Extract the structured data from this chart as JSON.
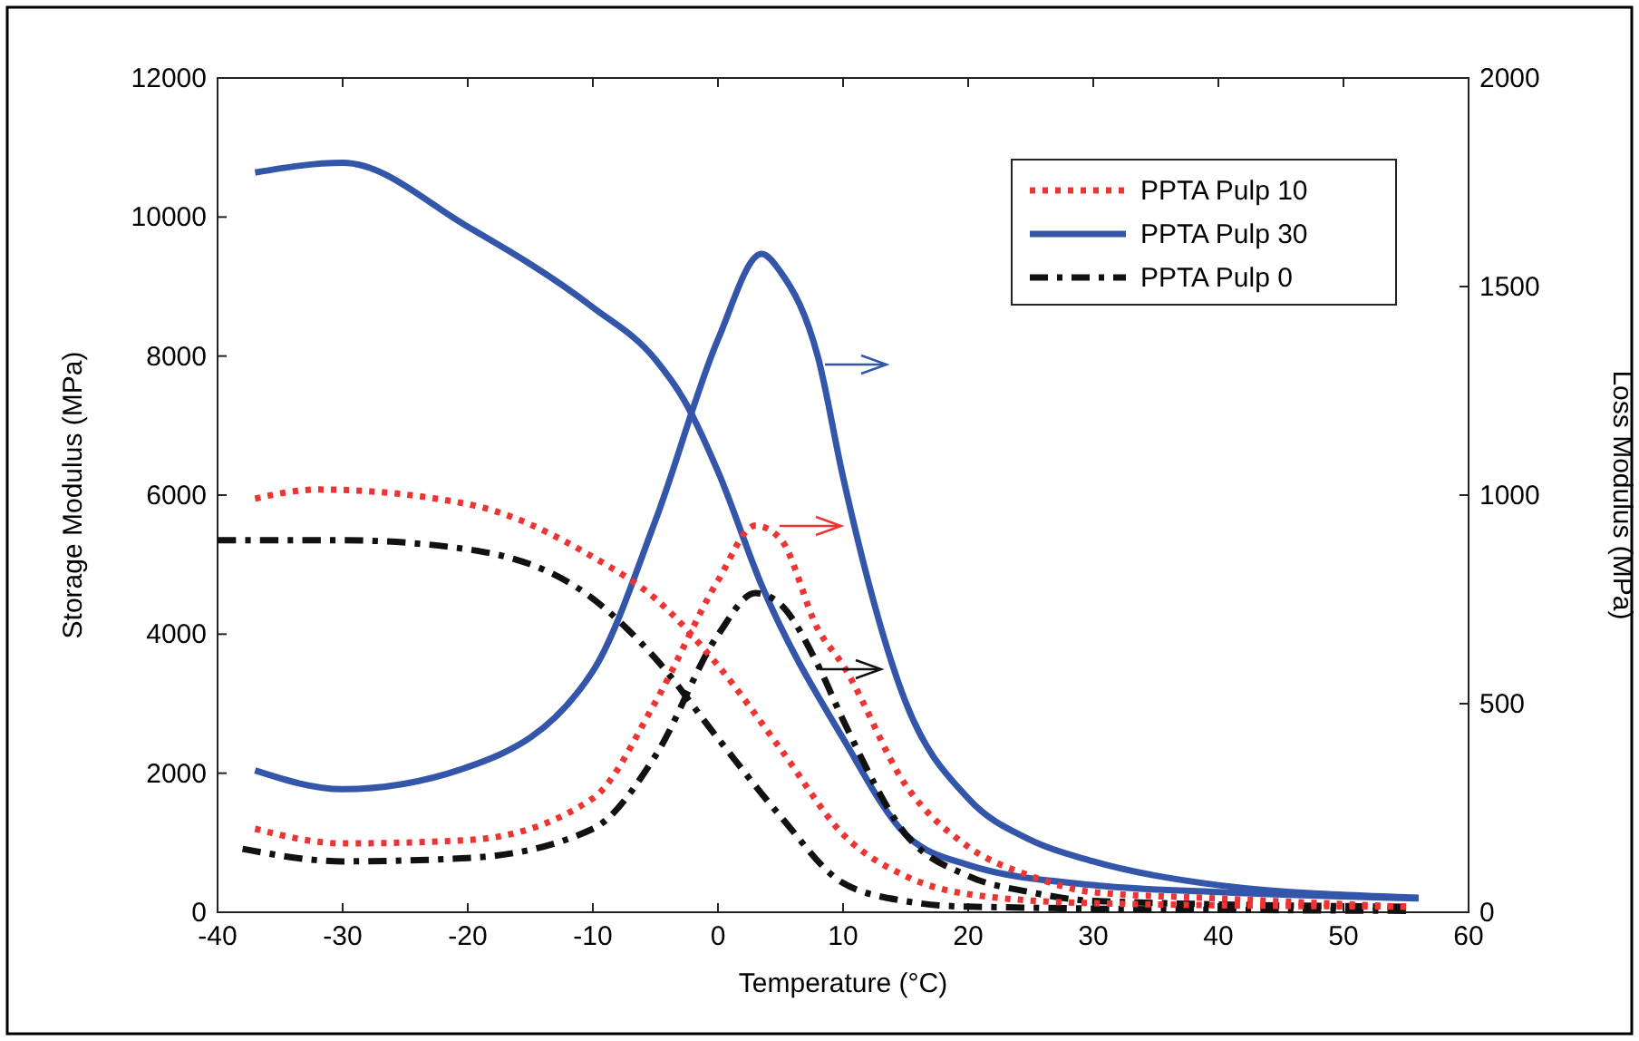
{
  "chart_data": {
    "type": "line",
    "xlabel": "Temperature (°C)",
    "ylabel": "Storage Modulus (MPa)",
    "y2label": "Loss Modulus (MPa)",
    "xlim": [
      -40,
      60
    ],
    "xticks": [
      -40,
      -30,
      -20,
      -10,
      0,
      10,
      20,
      30,
      40,
      50,
      60
    ],
    "ylim": [
      0,
      12000
    ],
    "yticks": [
      0,
      2000,
      4000,
      6000,
      8000,
      10000,
      12000
    ],
    "y2lim": [
      0,
      2000
    ],
    "y2ticks": [
      0,
      500,
      1000,
      1500,
      2000
    ],
    "grid": false,
    "legend": "top right",
    "series": [
      {
        "name": "PPTA Pulp 10",
        "color": "#ee3333",
        "line_style": "dotted",
        "x": [
          -37,
          -32,
          -20,
          -10,
          -5,
          0,
          5,
          10,
          15,
          20,
          30,
          55
        ],
        "values": [
          5950,
          6080,
          5870,
          5110,
          4510,
          3550,
          2350,
          1120,
          520,
          260,
          130,
          80
        ]
      },
      {
        "name": "PPTA Pulp 30",
        "color": "#3355aa",
        "line_style": "solid",
        "x": [
          -37,
          -30,
          -20,
          -10,
          -5,
          -2.75,
          0,
          3.5,
          10,
          15,
          20,
          30,
          40,
          56
        ],
        "values": [
          10640,
          10780,
          9860,
          8700,
          7950,
          7380,
          6340,
          4700,
          2500,
          1120,
          680,
          390,
          290,
          200
        ]
      },
      {
        "name": "PPTA Pulp 0",
        "color": "#111111",
        "line_style": "dashdot",
        "x": [
          -40,
          -30,
          -20,
          -10,
          -5,
          0,
          5,
          10,
          15,
          20,
          55
        ],
        "values": [
          5350,
          5350,
          5220,
          4510,
          3650,
          2500,
          1380,
          420,
          160,
          80,
          20
        ]
      },
      {
        "color": "#ee3333",
        "line_style": "dotted",
        "axis": "y2",
        "x": [
          -37,
          -30,
          -20,
          -10,
          -5,
          0,
          3,
          5,
          8,
          10,
          15,
          20,
          25,
          30,
          40,
          55
        ],
        "values": [
          200,
          165,
          173,
          273,
          504,
          795,
          927,
          895,
          678,
          592,
          305,
          157,
          87,
          48,
          33,
          13
        ]
      },
      {
        "color": "#3355aa",
        "line_style": "solid",
        "axis": "y2",
        "x": [
          -37,
          -30,
          -20,
          -10,
          -5,
          0,
          3.5,
          5,
          8,
          10,
          15,
          20,
          25,
          30,
          40,
          56
        ],
        "values": [
          340,
          295,
          348,
          578,
          939,
          1373,
          1578,
          1535,
          1330,
          1043,
          504,
          273,
          173,
          122,
          65,
          35
        ]
      },
      {
        "color": "#111111",
        "line_style": "dashdot",
        "axis": "y2",
        "x": [
          -38,
          -30,
          -20,
          -10,
          -5,
          0,
          3,
          5,
          8,
          10,
          15,
          20,
          25,
          30,
          55
        ],
        "values": [
          152,
          122,
          130,
          200,
          375,
          665,
          765,
          738,
          592,
          461,
          187,
          87,
          48,
          27,
          13
        ]
      }
    ]
  }
}
